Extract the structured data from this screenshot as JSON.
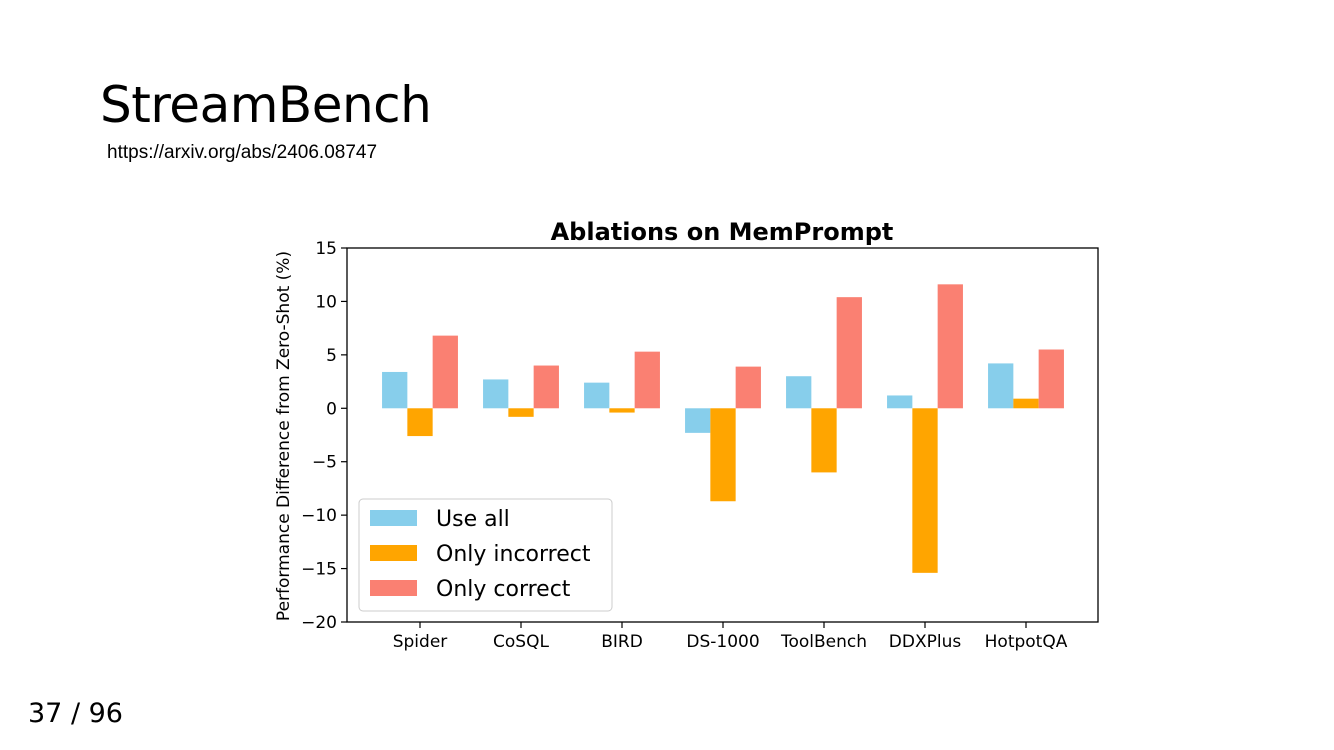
{
  "slide": {
    "title": "StreamBench",
    "link": "https://arxiv.org/abs/2406.08747",
    "page_counter": "37 / 96"
  },
  "chart_data": {
    "type": "bar",
    "title": "Ablations on MemPrompt",
    "xlabel": "",
    "ylabel": "Performance Difference from Zero-Shot (%)",
    "ylim": [
      -20,
      15
    ],
    "yticks": [
      15,
      10,
      5,
      0,
      -5,
      -10,
      -15,
      -20
    ],
    "ytick_labels": [
      "15",
      "10",
      "5",
      "0",
      "−5",
      "−10",
      "−15",
      "−20"
    ],
    "categories": [
      "Spider",
      "CoSQL",
      "BIRD",
      "DS-1000",
      "ToolBench",
      "DDXPlus",
      "HotpotQA"
    ],
    "series": [
      {
        "name": "Use all",
        "color": "#87ceeb",
        "values": [
          3.4,
          2.7,
          2.4,
          -2.3,
          3.0,
          1.2,
          4.2
        ]
      },
      {
        "name": "Only incorrect",
        "color": "#ffa500",
        "values": [
          -2.6,
          -0.8,
          -0.4,
          -8.7,
          -6.0,
          -15.4,
          0.9
        ]
      },
      {
        "name": "Only correct",
        "color": "#fa8072",
        "values": [
          6.8,
          4.0,
          5.3,
          3.9,
          10.4,
          11.6,
          5.5
        ]
      }
    ],
    "legend": "lower-left",
    "grid": false
  }
}
